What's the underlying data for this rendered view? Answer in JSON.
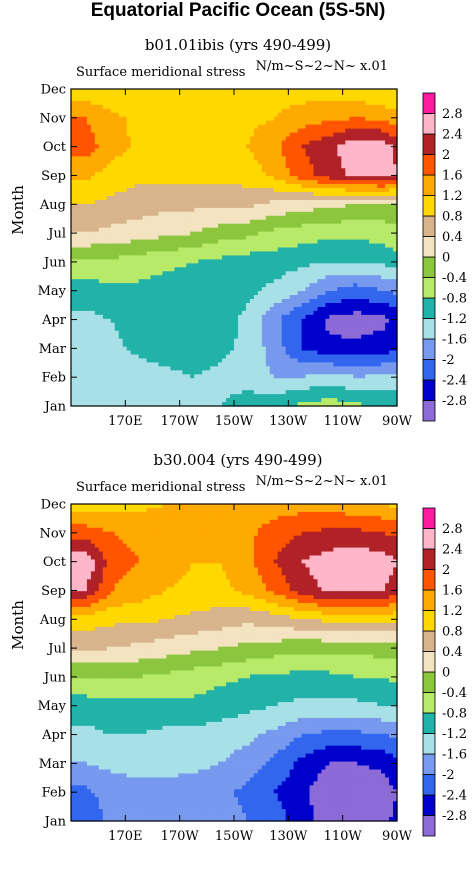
{
  "title": "Equatorial Pacific Ocean (5S-5N)",
  "colors": [
    "#8c6bd6",
    "#0000cc",
    "#3366ee",
    "#7799ee",
    "#a8e0e8",
    "#22b3a8",
    "#b8ea6a",
    "#8cc63e",
    "#f3e3c0",
    "#d8b48c",
    "#ffd800",
    "#ffaa00",
    "#ff5500",
    "#b02228",
    "#ffb6c8",
    "#ff1aa0"
  ],
  "chart_data": [
    {
      "type": "heatmap",
      "title": "b01.01ibis (yrs 490-499)",
      "variable": "Surface meridional stress",
      "units": "N/m~S~2~N~ x.01",
      "ylabel": "Month",
      "x_ticks": [
        "170E",
        "170W",
        "150W",
        "130W",
        "110W",
        "90W"
      ],
      "y_ticks": [
        "Jan",
        "Feb",
        "Mar",
        "Apr",
        "May",
        "Jun",
        "Jul",
        "Aug",
        "Sep",
        "Oct",
        "Nov",
        "Dec"
      ],
      "levels": [
        "-2.8",
        "-2.4",
        "-2",
        "-1.6",
        "-1.2",
        "-0.8",
        "-0.4",
        "0",
        "0.4",
        "0.8",
        "1.2",
        "1.6",
        "2",
        "2.4",
        "2.8"
      ],
      "x": [
        155,
        165,
        175,
        185,
        195,
        205,
        215,
        225,
        235,
        245,
        255,
        265,
        270
      ],
      "z": [
        [
          -0.1,
          -0.3,
          -0.5,
          -0.7,
          -0.7,
          -0.8,
          -0.8,
          -0.9,
          -0.8,
          -0.5,
          -0.3,
          -0.2,
          -0.1
        ],
        [
          -1.6,
          -1.5,
          -1.4,
          -1.4,
          -1.3,
          -1.2,
          -1.0,
          -0.9,
          -0.7,
          -0.6,
          -0.7,
          -0.9,
          -1.0
        ],
        [
          -1.5,
          -1.6,
          -1.4,
          -1.3,
          -1.2,
          -1.3,
          -1.4,
          -1.6,
          -1.6,
          -1.4,
          -1.6,
          -1.5,
          -1.4
        ],
        [
          -1.4,
          -1.3,
          -1.1,
          -1.0,
          -1.0,
          -1.1,
          -1.3,
          -1.8,
          -2.4,
          -2.7,
          -2.7,
          -2.6,
          -2.5
        ],
        [
          -1.3,
          -1.2,
          -1.0,
          -0.9,
          -0.9,
          -1.0,
          -1.3,
          -1.9,
          -2.4,
          -2.9,
          -3.0,
          -2.9,
          -2.7
        ],
        [
          -1.0,
          -0.9,
          -0.9,
          -1.0,
          -1.0,
          -1.0,
          -1.1,
          -1.3,
          -1.6,
          -2.0,
          -2.2,
          -2.0,
          -1.9
        ],
        [
          -0.5,
          -0.5,
          -0.6,
          -0.7,
          -0.8,
          -0.9,
          -1.0,
          -1.0,
          -1.1,
          -1.2,
          -1.2,
          -1.1,
          -1.0
        ],
        [
          0.4,
          0.3,
          0.2,
          0.1,
          0.0,
          -0.2,
          -0.3,
          -0.5,
          -0.6,
          -0.7,
          -0.7,
          -0.6,
          -0.5
        ],
        [
          0.8,
          0.7,
          0.6,
          0.5,
          0.5,
          0.5,
          0.5,
          0.3,
          0.2,
          0.1,
          0.0,
          -0.1,
          -0.1
        ],
        [
          1.3,
          1.0,
          0.9,
          0.9,
          0.9,
          0.9,
          1.0,
          1.3,
          1.8,
          2.2,
          2.5,
          2.6,
          2.4
        ],
        [
          1.8,
          1.4,
          1.1,
          1.0,
          1.0,
          1.1,
          1.2,
          1.5,
          2.0,
          2.3,
          2.7,
          2.6,
          2.3
        ],
        [
          1.6,
          1.3,
          1.1,
          1.0,
          1.0,
          1.0,
          1.1,
          1.2,
          1.4,
          1.5,
          1.6,
          1.5,
          1.3
        ],
        [
          0.9,
          0.9,
          0.9,
          1.0,
          1.0,
          1.0,
          1.0,
          1.0,
          1.0,
          1.0,
          0.9,
          0.8,
          0.8
        ],
        [
          0.3,
          0.3,
          0.4,
          0.5,
          0.6,
          0.6,
          0.5,
          0.4,
          0.3,
          0.3,
          0.3,
          0.3,
          0.3
        ]
      ]
    },
    {
      "type": "heatmap",
      "title": "b30.004 (yrs 490-499)",
      "variable": "Surface meridional stress",
      "units": "N/m~S~2~N~ x.01",
      "ylabel": "Month",
      "x_ticks": [
        "170E",
        "170W",
        "150W",
        "130W",
        "110W",
        "90W"
      ],
      "y_ticks": [
        "Jan",
        "Feb",
        "Mar",
        "Apr",
        "May",
        "Jun",
        "Jul",
        "Aug",
        "Sep",
        "Oct",
        "Nov",
        "Dec"
      ],
      "levels": [
        "-2.8",
        "-2.4",
        "-2",
        "-1.6",
        "-1.2",
        "-0.8",
        "-0.4",
        "0",
        "0.4",
        "0.8",
        "1.2",
        "1.6",
        "2",
        "2.4",
        "2.8"
      ],
      "x": [
        155,
        165,
        175,
        185,
        195,
        205,
        215,
        225,
        235,
        245,
        255,
        265,
        270
      ],
      "z": [
        [
          -2.0,
          -1.9,
          -1.8,
          -1.7,
          -1.7,
          -1.7,
          -1.8,
          -1.9,
          -2.2,
          -2.4,
          -2.4,
          -2.3,
          -2.2
        ],
        [
          -2.3,
          -1.9,
          -1.7,
          -1.7,
          -1.8,
          -1.8,
          -2.0,
          -2.2,
          -2.6,
          -3.0,
          -3.0,
          -2.9,
          -2.7
        ],
        [
          -2.1,
          -1.8,
          -1.7,
          -1.7,
          -1.8,
          -1.9,
          -2.1,
          -2.4,
          -2.7,
          -3.1,
          -3.1,
          -3.0,
          -2.8
        ],
        [
          -1.6,
          -1.5,
          -1.5,
          -1.5,
          -1.5,
          -1.6,
          -1.8,
          -2.1,
          -2.5,
          -2.8,
          -2.8,
          -2.7,
          -2.5
        ],
        [
          -1.3,
          -1.2,
          -1.2,
          -1.3,
          -1.3,
          -1.4,
          -1.5,
          -1.7,
          -2.0,
          -2.1,
          -2.1,
          -2.0,
          -1.9
        ],
        [
          -1.0,
          -0.9,
          -0.9,
          -0.9,
          -0.9,
          -1.0,
          -1.1,
          -1.2,
          -1.3,
          -1.3,
          -1.3,
          -1.2,
          -1.2
        ],
        [
          -0.4,
          -0.4,
          -0.4,
          -0.5,
          -0.6,
          -0.7,
          -0.8,
          -0.9,
          -0.9,
          -0.9,
          -0.8,
          -0.8,
          -0.7
        ],
        [
          0.5,
          0.4,
          0.3,
          0.2,
          0.1,
          0.0,
          -0.1,
          -0.2,
          -0.3,
          -0.3,
          -0.3,
          -0.2,
          -0.2
        ],
        [
          1.0,
          0.9,
          0.9,
          0.8,
          0.7,
          0.6,
          0.5,
          0.6,
          0.8,
          0.9,
          0.9,
          0.9,
          0.9
        ],
        [
          2.4,
          1.6,
          1.4,
          1.2,
          1.1,
          1.1,
          1.3,
          1.7,
          2.2,
          2.5,
          2.5,
          2.4,
          2.2
        ],
        [
          2.8,
          1.8,
          1.6,
          1.4,
          1.2,
          1.2,
          1.5,
          2.0,
          2.4,
          2.6,
          2.7,
          2.6,
          2.4
        ],
        [
          1.8,
          1.6,
          1.5,
          1.4,
          1.3,
          1.3,
          1.5,
          1.8,
          2.0,
          2.1,
          2.1,
          2.0,
          1.9
        ],
        [
          1.0,
          1.0,
          1.1,
          1.2,
          1.3,
          1.3,
          1.4,
          1.4,
          1.4,
          1.4,
          1.3,
          1.2,
          1.1
        ],
        [
          0.4,
          0.4,
          0.5,
          0.6,
          0.7,
          0.8,
          0.8,
          0.7,
          0.6,
          0.5,
          0.5,
          0.4,
          0.4
        ]
      ]
    }
  ]
}
